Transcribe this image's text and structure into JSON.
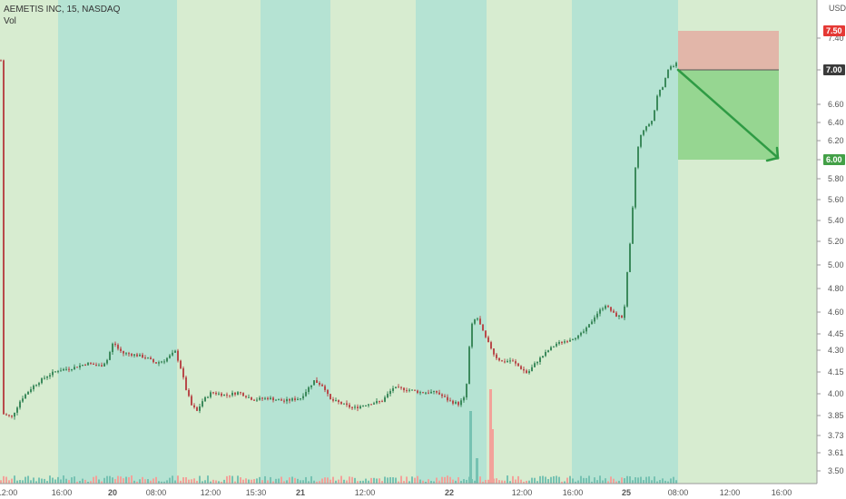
{
  "legend": {
    "symbol": "AEMETIS INC, 15, NASDAQ",
    "volume": "Vol"
  },
  "axis": {
    "currency": "USD"
  },
  "colors": {
    "up": "#3c8a5c",
    "down": "#b84a4a",
    "vol_up": "#76c2b2",
    "vol_down": "#f2a29a",
    "session_a": "#d7ecd0",
    "session_b": "#b5e3d3",
    "stop_zone": "#e3b3a6",
    "target_zone": "#8fd48a",
    "arrow": "#2f9b44"
  },
  "chart_data": {
    "type": "candlestick",
    "y_ticks": [
      "7.40",
      "7.00",
      "6.60",
      "6.40",
      "6.20",
      "6.00",
      "5.80",
      "5.60",
      "5.40",
      "5.20",
      "5.00",
      "4.80",
      "4.60",
      "4.45",
      "4.30",
      "4.15",
      "4.00",
      "3.85",
      "3.73",
      "3.61",
      "3.50"
    ],
    "x_ticks": [
      "12:00",
      "16:00",
      "20",
      "08:00",
      "12:00",
      "15:30",
      "21",
      "12:00",
      "22",
      "12:00",
      "16:00",
      "25",
      "08:00",
      "12:00",
      "16:00"
    ],
    "price_tags": {
      "stop": "7.50",
      "entry": "7.00",
      "target": "6.00"
    },
    "position": {
      "type": "short",
      "entry": 7.0,
      "stop": 7.5,
      "target": 6.0
    },
    "sessions": [
      {
        "x0": 0,
        "x1": 64,
        "shade": "a"
      },
      {
        "x0": 64,
        "x1": 195,
        "shade": "b"
      },
      {
        "x0": 195,
        "x1": 287,
        "shade": "a"
      },
      {
        "x0": 287,
        "x1": 364,
        "shade": "b"
      },
      {
        "x0": 364,
        "x1": 458,
        "shade": "a"
      },
      {
        "x0": 458,
        "x1": 536,
        "shade": "b"
      },
      {
        "x0": 536,
        "x1": 630,
        "shade": "a"
      },
      {
        "x0": 630,
        "x1": 747,
        "shade": "b"
      },
      {
        "x0": 747,
        "x1": 900,
        "shade": "a"
      }
    ],
    "series": [
      {
        "name": "",
        "anchors": [
          [
            3,
            3.86
          ],
          [
            12,
            3.84
          ],
          [
            22,
            3.96
          ],
          [
            35,
            4.05
          ],
          [
            50,
            4.12
          ],
          [
            62,
            4.16
          ],
          [
            80,
            4.18
          ],
          [
            95,
            4.21
          ],
          [
            110,
            4.19
          ],
          [
            118,
            4.24
          ],
          [
            124,
            4.38
          ],
          [
            128,
            4.32
          ],
          [
            134,
            4.28
          ],
          [
            146,
            4.27
          ],
          [
            160,
            4.25
          ],
          [
            170,
            4.21
          ],
          [
            180,
            4.23
          ],
          [
            192,
            4.29
          ],
          [
            198,
            4.18
          ],
          [
            204,
            4.03
          ],
          [
            210,
            3.92
          ],
          [
            216,
            3.88
          ],
          [
            222,
            3.95
          ],
          [
            232,
            4.01
          ],
          [
            248,
            3.99
          ],
          [
            262,
            4.01
          ],
          [
            278,
            3.96
          ],
          [
            294,
            3.97
          ],
          [
            312,
            3.95
          ],
          [
            330,
            3.97
          ],
          [
            345,
            4.09
          ],
          [
            356,
            4.05
          ],
          [
            362,
            3.96
          ],
          [
            372,
            3.94
          ],
          [
            388,
            3.9
          ],
          [
            404,
            3.93
          ],
          [
            420,
            3.95
          ],
          [
            432,
            4.04
          ],
          [
            448,
            4.03
          ],
          [
            462,
            4.01
          ],
          [
            480,
            4.01
          ],
          [
            494,
            3.95
          ],
          [
            504,
            3.93
          ],
          [
            512,
            3.98
          ],
          [
            518,
            4.5
          ],
          [
            524,
            4.57
          ],
          [
            530,
            4.48
          ],
          [
            536,
            4.38
          ],
          [
            544,
            4.26
          ],
          [
            552,
            4.22
          ],
          [
            562,
            4.23
          ],
          [
            572,
            4.18
          ],
          [
            580,
            4.14
          ],
          [
            590,
            4.22
          ],
          [
            600,
            4.28
          ],
          [
            612,
            4.36
          ],
          [
            624,
            4.39
          ],
          [
            636,
            4.43
          ],
          [
            646,
            4.49
          ],
          [
            654,
            4.57
          ],
          [
            666,
            4.66
          ],
          [
            676,
            4.58
          ],
          [
            686,
            4.56
          ],
          [
            690,
            4.93
          ],
          [
            694,
            5.25
          ],
          [
            700,
            6.05
          ],
          [
            706,
            6.3
          ],
          [
            712,
            6.36
          ],
          [
            718,
            6.43
          ],
          [
            724,
            6.75
          ],
          [
            730,
            6.82
          ],
          [
            736,
            7.05
          ],
          [
            742,
            7.05
          ],
          [
            746,
            7.12
          ]
        ]
      }
    ],
    "volume_spikes": [
      {
        "x": 517,
        "h": 80,
        "down": false
      },
      {
        "x": 539,
        "h": 104,
        "down": true
      },
      {
        "x": 541,
        "h": 60,
        "down": true
      },
      {
        "x": 524,
        "h": 28,
        "down": false
      }
    ]
  }
}
